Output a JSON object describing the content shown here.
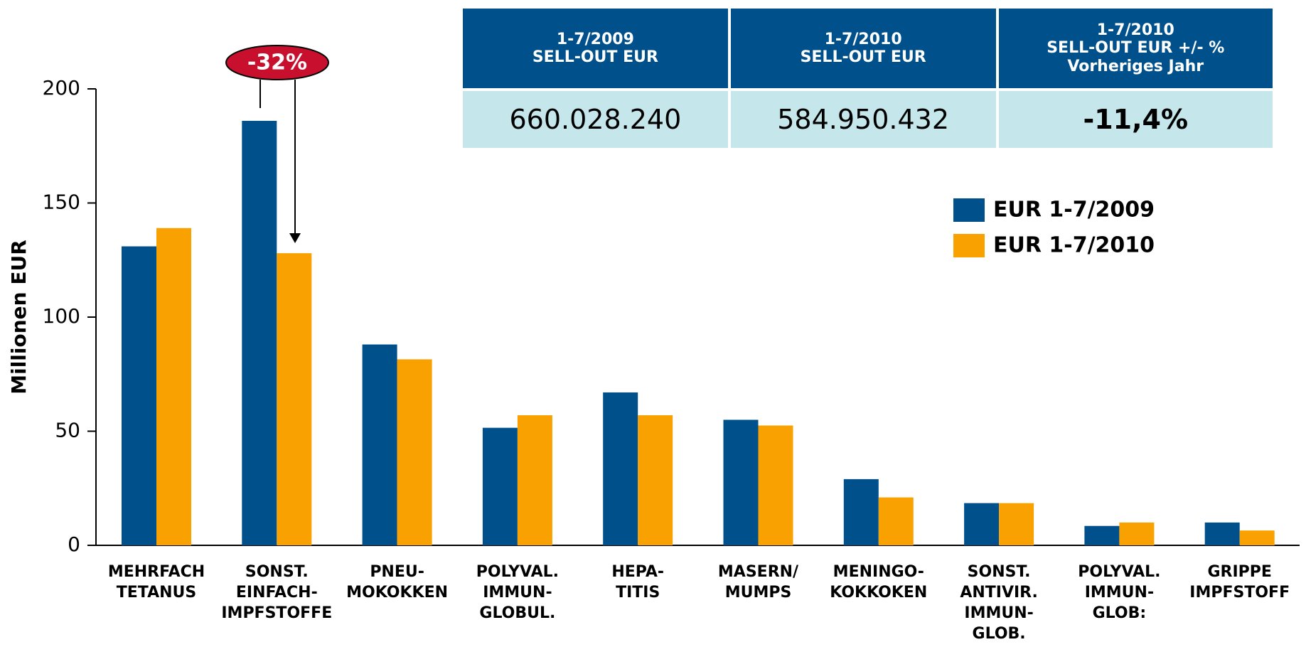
{
  "chart_data": {
    "type": "bar",
    "ylabel": "Millionen EUR",
    "categories": [
      "MEHRFACH\nTETANUS",
      "SONST.\nEINFACH-\nIMPFSTOFFE",
      "PNEU-\nMOKOKKEN",
      "POLYVAL.\nIMMUN-\nGLOBUL.",
      "HEPA-\nTITIS",
      "MASERN/\nMUMPS",
      "MENINGO-\nKOKKOKEN",
      "SONST.\nANTIVIR.\nIMMUN-\nGLOB.",
      "POLYVAL.\nIMMUN-\nGLOB:",
      "GRIPPE\nIMPFSTOFF"
    ],
    "series": [
      {
        "name": "EUR 1-7/2009",
        "color": "#00508c",
        "values": [
          131,
          186,
          88,
          51.5,
          67,
          55,
          29,
          18.5,
          8.5,
          10
        ]
      },
      {
        "name": "EUR 1-7/2010",
        "color": "#f8a100",
        "values": [
          139,
          128,
          81.5,
          57,
          57,
          52.5,
          21,
          18.5,
          10,
          6.5
        ]
      }
    ],
    "ylim": [
      0,
      200
    ],
    "yticks": [
      0,
      50,
      100,
      150,
      200
    ],
    "annotation": "-32%"
  },
  "table": {
    "header": [
      "1-7/2009\nSELL-OUT EUR",
      "1-7/2010\nSELL-OUT EUR",
      "1-7/2010\nSELL-OUT EUR +/- %\nVorheriges Jahr"
    ],
    "rows": [
      [
        "660.028.240",
        "584.950.432",
        "-11,4%"
      ]
    ]
  }
}
